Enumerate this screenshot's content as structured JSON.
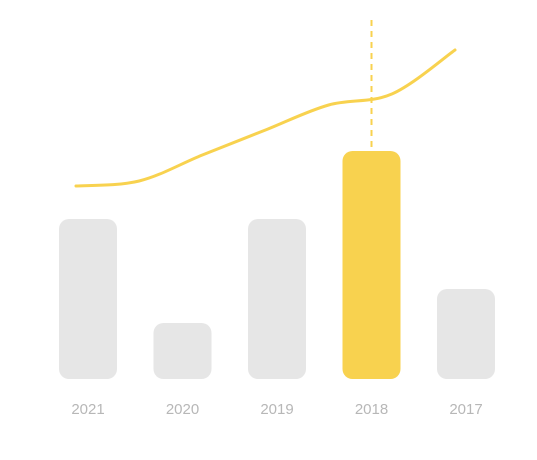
{
  "chart_data": {
    "type": "bar",
    "categories": [
      "2021",
      "2020",
      "2019",
      "2018",
      "2017"
    ],
    "values": [
      160,
      56,
      160,
      228,
      90
    ],
    "highlighted_category": "2018",
    "line_series": {
      "values": [
        193,
        198,
        224,
        249,
        274,
        285,
        329
      ],
      "type": "line"
    },
    "title": "",
    "xlabel": "",
    "ylabel": "",
    "ylim": [
      0,
      365
    ],
    "grid": false,
    "legend": "none"
  },
  "colors": {
    "bar_default": "#e6e6e6",
    "bar_highlight": "#f8d24f",
    "line": "#f8d24f",
    "tick_label": "#b7b7b7",
    "background": "#ffffff"
  }
}
